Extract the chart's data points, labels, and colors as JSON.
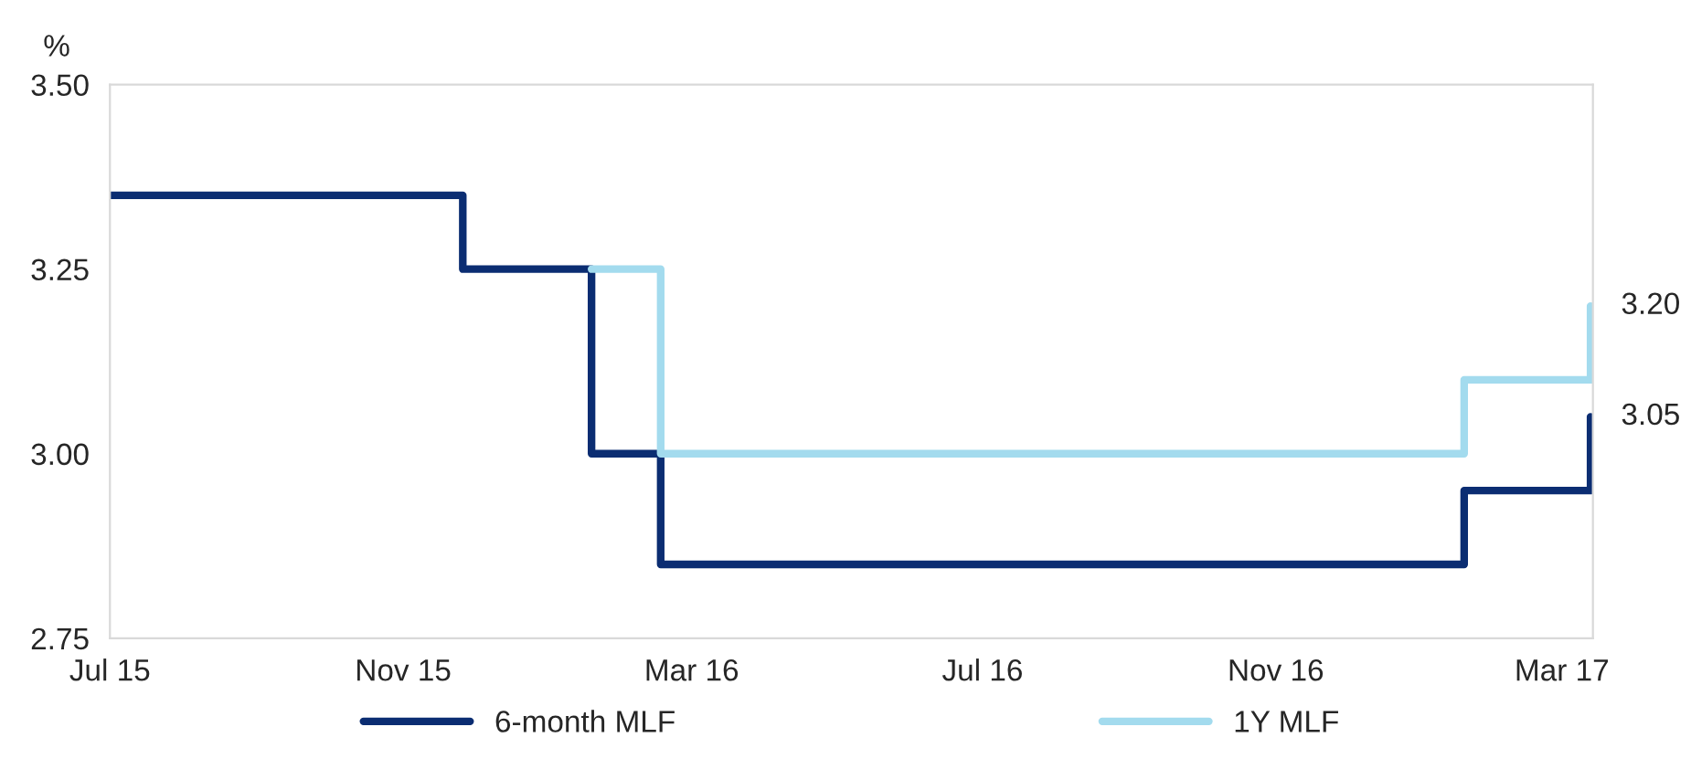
{
  "chart_data": {
    "type": "step",
    "ylabel": "%",
    "xlim": [
      "2015-07-01",
      "2017-03-14"
    ],
    "xticks": [
      {
        "value": "2015-07-01",
        "label": "Jul 15"
      },
      {
        "value": "2015-11-01",
        "label": "Nov 15"
      },
      {
        "value": "2016-03-01",
        "label": "Mar 16"
      },
      {
        "value": "2016-07-01",
        "label": "Jul 16"
      },
      {
        "value": "2016-11-01",
        "label": "Nov 16"
      },
      {
        "value": "2017-03-01",
        "label": "Mar 17"
      }
    ],
    "ylim": [
      2.75,
      3.5
    ],
    "yticks": [
      {
        "value": 2.75,
        "label": "2.75"
      },
      {
        "value": 3.0,
        "label": "3.00"
      },
      {
        "value": 3.25,
        "label": "3.25"
      },
      {
        "value": 3.5,
        "label": "3.50"
      }
    ],
    "grid": false,
    "legend": "bottom",
    "series": [
      {
        "name": "6-month MLF",
        "color": "#0b2d72",
        "x": [
          "2015-07-01",
          "2015-11-26",
          "2016-01-19",
          "2016-02-17",
          "2017-01-19",
          "2017-03-13"
        ],
        "values": [
          3.35,
          3.25,
          3.0,
          2.85,
          2.95,
          3.05
        ]
      },
      {
        "name": "1Y MLF",
        "color": "#a3dbee",
        "x": [
          "2016-01-19",
          "2016-02-17",
          "2017-01-19",
          "2017-03-13"
        ],
        "values": [
          3.25,
          3.0,
          3.1,
          3.2
        ]
      }
    ],
    "annotations": [
      {
        "text": "3.20",
        "x": "2017-03-13",
        "y": 3.2
      },
      {
        "text": "3.05",
        "x": "2017-03-13",
        "y": 3.05
      }
    ]
  }
}
